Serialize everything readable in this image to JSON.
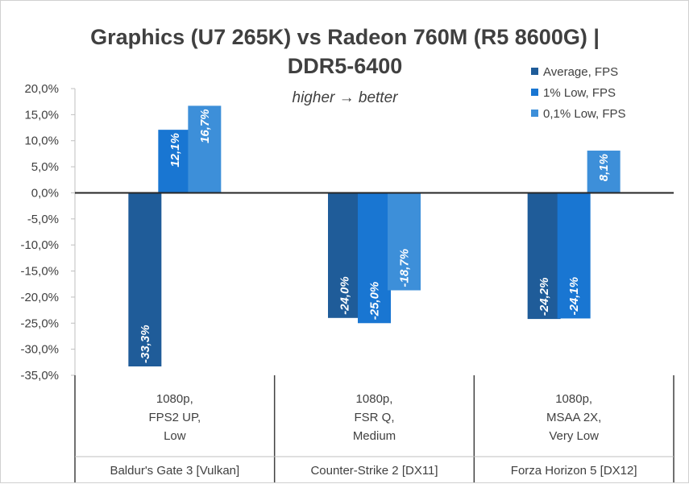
{
  "chart_data": {
    "type": "bar",
    "title_lines": [
      "Graphics (U7 265K) vs Radeon 760M (R5 8600G) |",
      "DDR5-6400"
    ],
    "subtitle": "higher → better",
    "ylim": [
      -35,
      20
    ],
    "yticks": [
      20,
      15,
      10,
      5,
      0,
      -5,
      -10,
      -15,
      -20,
      -25,
      -30,
      -35
    ],
    "ytick_labels": [
      "20,0%",
      "15,0%",
      "10,0%",
      "5,0%",
      "0,0%",
      "-5,0%",
      "-10,0%",
      "-15,0%",
      "-20,0%",
      "-25,0%",
      "-30,0%",
      "-35,0%"
    ],
    "legend_position": "top-right",
    "categories": [
      {
        "settings": [
          "1080p,",
          "FPS2 UP,",
          "Low"
        ],
        "game": "Baldur's Gate 3 [Vulkan]"
      },
      {
        "settings": [
          "1080p,",
          "FSR Q,",
          "Medium"
        ],
        "game": "Counter-Strike 2 [DX11]"
      },
      {
        "settings": [
          "1080p,",
          "MSAA 2X,",
          "Very Low"
        ],
        "game": "Forza Horizon 5 [DX12]"
      }
    ],
    "series": [
      {
        "name": "Average, FPS",
        "color": "#1f5c99",
        "values": [
          -33.3,
          -24.0,
          -24.2
        ],
        "labels": [
          "-33,3%",
          "-24,0%",
          "-24,2%"
        ]
      },
      {
        "name": "1% Low, FPS",
        "color": "#1976d2",
        "values": [
          12.1,
          -25.0,
          -24.1
        ],
        "labels": [
          "12,1%",
          "-25,0%",
          "-24,1%"
        ]
      },
      {
        "name": "0,1% Low, FPS",
        "color": "#3d8fd9",
        "values": [
          16.7,
          -18.7,
          8.1
        ],
        "labels": [
          "16,7%",
          "-18,7%",
          "8,1%"
        ]
      }
    ]
  }
}
